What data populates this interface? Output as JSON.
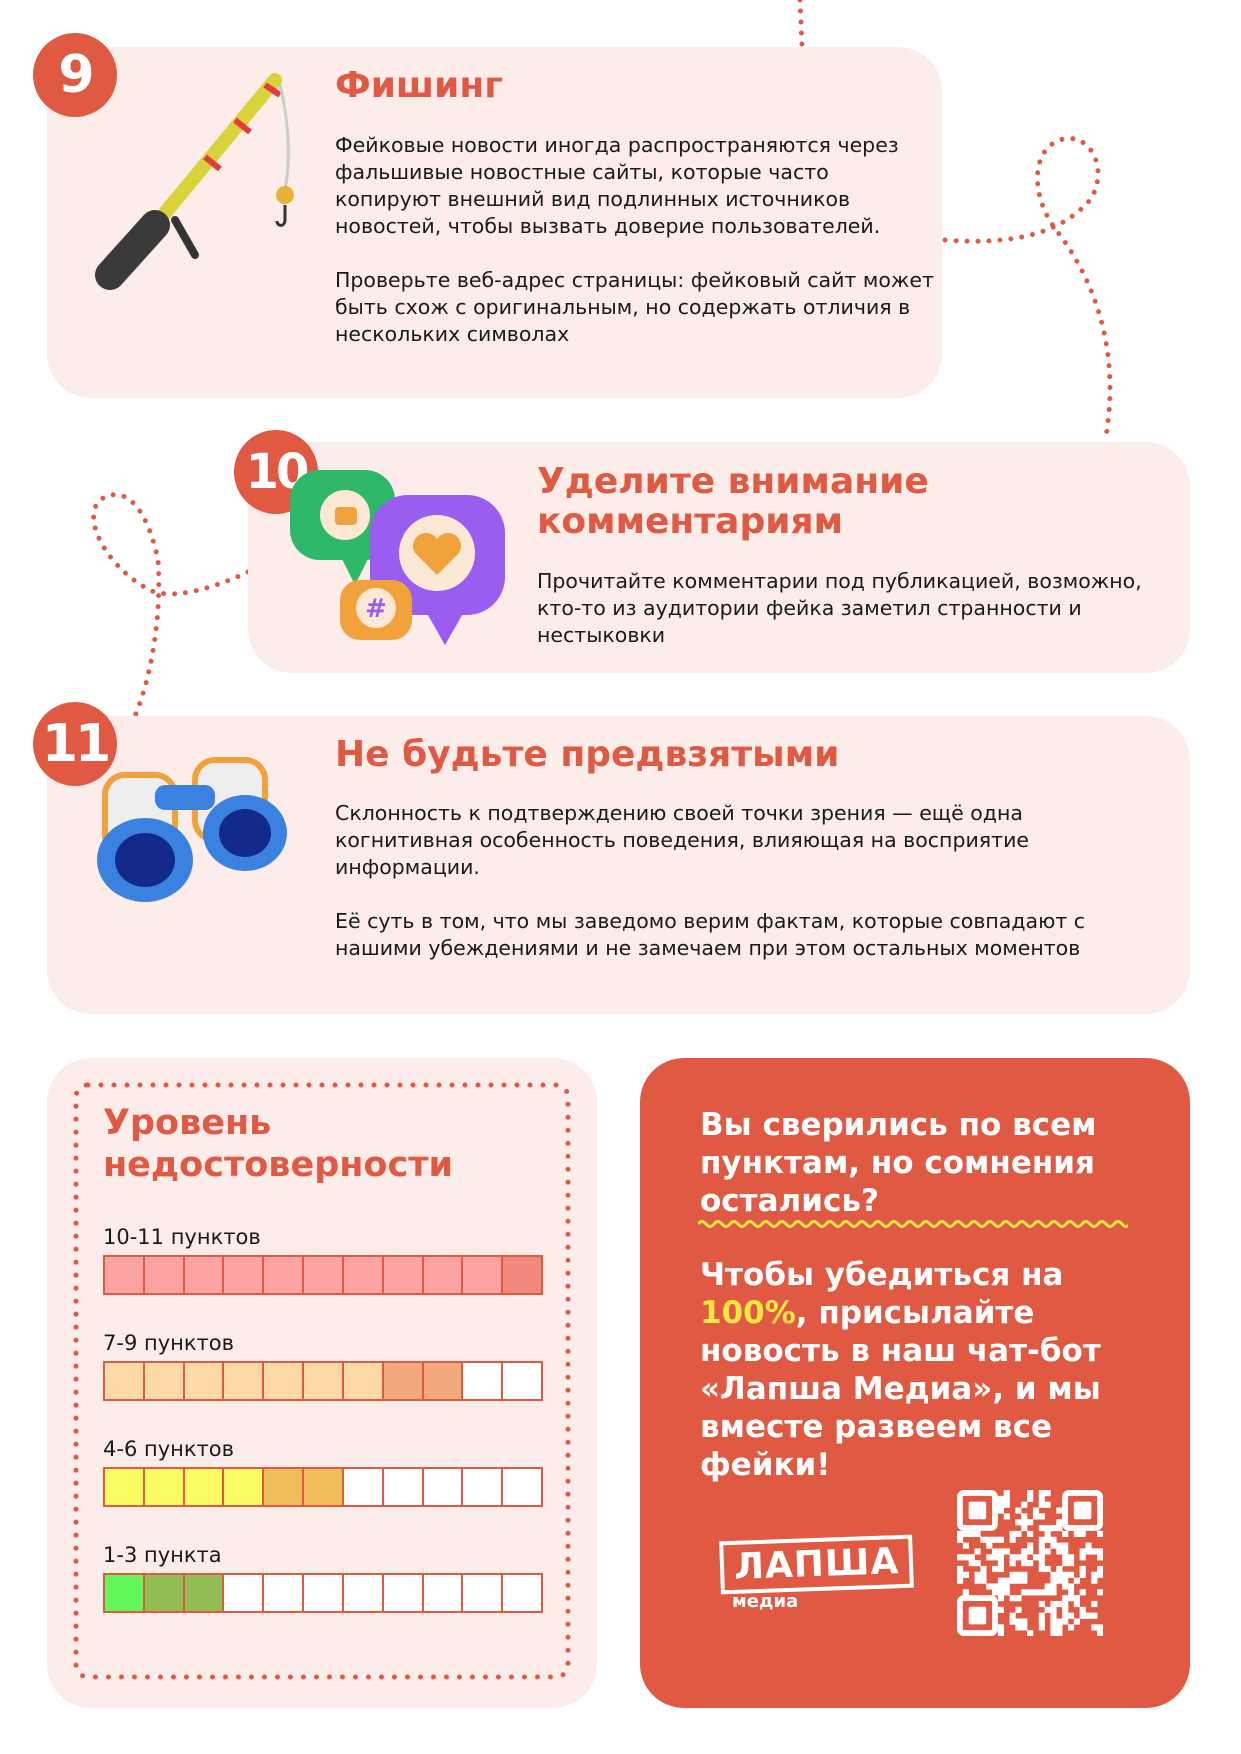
{
  "colors": {
    "accent": "#e05a43",
    "card_bg": "#fcecea",
    "highlight": "#f5e642"
  },
  "tips": [
    {
      "number": "9",
      "title": "Фишинг",
      "icon": "fishing-rod-icon",
      "paragraphs": [
        "Фейковые новости иногда распространяются через фальшивые новостные сайты, которые часто копируют внешний вид подлинных источников новостей, чтобы вызвать доверие пользователей.",
        "Проверьте веб-адрес страницы: фейковый сайт может быть схож с оригинальным, но содержать отличия в нескольких символах"
      ]
    },
    {
      "number": "10",
      "title": "Уделите внимание комментариям",
      "icon": "comment-bubbles-icon",
      "paragraphs": [
        "Прочитайте комментарии под публикацией, возможно, кто-то из аудитории фейка заметил странности и нестыковки"
      ]
    },
    {
      "number": "11",
      "title": "Не будьте предвзятыми",
      "icon": "binoculars-icon",
      "paragraphs": [
        "Склонность к подтверждению своей точки зрения — ещё одна когнитивная особенность поведения, влияющая на восприятие информации.",
        "Её суть в том, что мы заведомо верим фактам, которые совпадают с нашими убеждениями и не замечаем при этом остальных моментов"
      ]
    }
  ],
  "levels": {
    "title": "Уровень недостоверности",
    "total_cells": 11,
    "rows": [
      {
        "label": "10-11 пунктов",
        "cells": [
          "#fca4a4",
          "#fca4a4",
          "#fca4a4",
          "#fca4a4",
          "#fca4a4",
          "#fca4a4",
          "#fca4a4",
          "#fca4a4",
          "#fca4a4",
          "#fca4a4",
          "#f0887e"
        ]
      },
      {
        "label": "7-9 пунктов",
        "cells": [
          "#fdd9a8",
          "#fdd9a8",
          "#fdd9a8",
          "#fdd9a8",
          "#fdd9a8",
          "#fdd9a8",
          "#fdd9a8",
          "#f2a97e",
          "#f2a97e",
          "#ffffff",
          "#ffffff"
        ]
      },
      {
        "label": "4-6 пунктов",
        "cells": [
          "#fbfb62",
          "#fbfb62",
          "#fbfb62",
          "#fbfb62",
          "#efbd5a",
          "#efbd5a",
          "#ffffff",
          "#ffffff",
          "#ffffff",
          "#ffffff",
          "#ffffff"
        ]
      },
      {
        "label": "1-3 пункта",
        "cells": [
          "#64f75a",
          "#93bd55",
          "#93bd55",
          "#ffffff",
          "#ffffff",
          "#ffffff",
          "#ffffff",
          "#ffffff",
          "#ffffff",
          "#ffffff",
          "#ffffff"
        ]
      }
    ]
  },
  "cta": {
    "question": "Вы сверились по всем пунктам, но сомнения остались?",
    "text_before": "Чтобы убедиться на ",
    "highlight": "100%",
    "text_after": ", присылайте новость в наш чат-бот «Лапша Медиа», и мы вместе развеем все фейки!",
    "logo_main": "ЛАПША",
    "logo_sub": "медиа",
    "qr_icon": "qr-code-icon"
  }
}
